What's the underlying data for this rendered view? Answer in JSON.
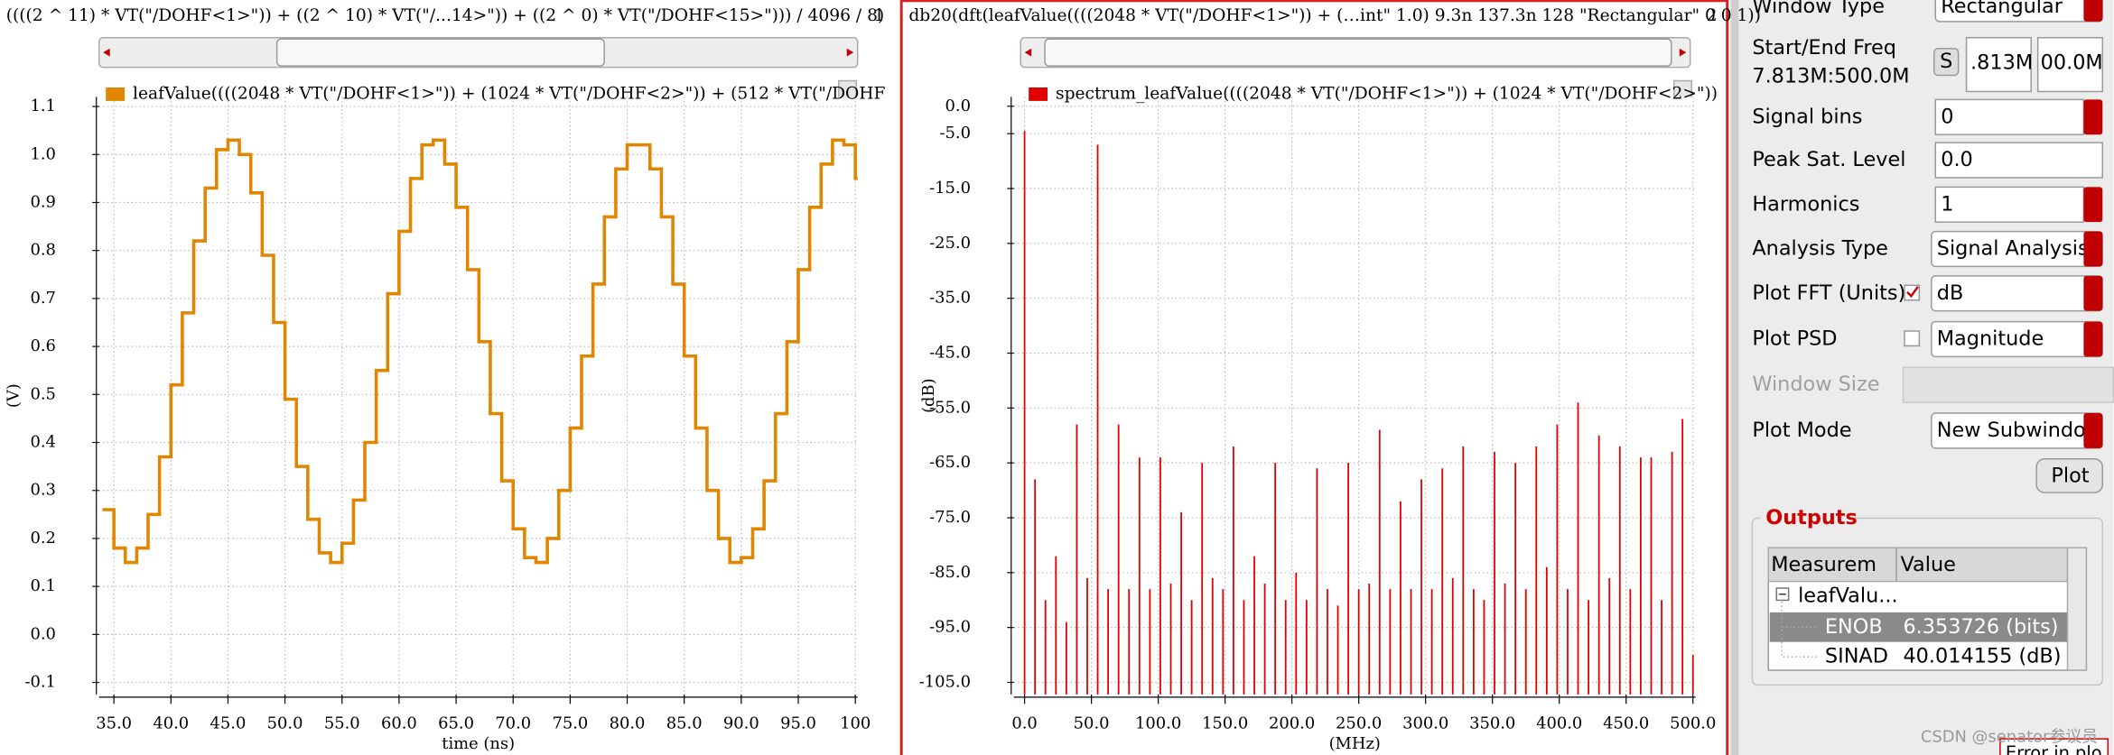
{
  "chart_data": [
    {
      "type": "line",
      "step": true,
      "title": "((((2 ^ 11) * VT(\"/DOHF<1>\")) + ((2 ^ 10) * VT(\"/...14>\")) + ((2 ^ 0) * VT(\"/DOHF<15>\"))) / 4096 / 8)",
      "subwindow": 1,
      "xlabel": "time (ns)",
      "ylabel": "(V)",
      "x": [
        34,
        35,
        36,
        37,
        38,
        39,
        40,
        41,
        42,
        43,
        44,
        45,
        46,
        47,
        48,
        49,
        50,
        51,
        52,
        53,
        54,
        55,
        56,
        57,
        58,
        59,
        60,
        61,
        62,
        63,
        64,
        65,
        66,
        67,
        68,
        69,
        70,
        71,
        72,
        73,
        74,
        75,
        76,
        77,
        78,
        79,
        80,
        81,
        82,
        83,
        84,
        85,
        86,
        87,
        88,
        89,
        90,
        91,
        92,
        93,
        94,
        95,
        96,
        97,
        98,
        99,
        100
      ],
      "series": [
        {
          "name": "leafValue((((2048 * VT(\"/DOHF<1>\")) + (1024 * VT(\"/DOHF<2>\")) + (512 * VT(\"/DOHF",
          "color": "#e08600",
          "values": [
            0.26,
            0.18,
            0.15,
            0.18,
            0.25,
            0.37,
            0.52,
            0.67,
            0.82,
            0.93,
            1.01,
            1.03,
            1.0,
            0.92,
            0.79,
            0.65,
            0.49,
            0.35,
            0.24,
            0.17,
            0.15,
            0.19,
            0.28,
            0.4,
            0.55,
            0.71,
            0.84,
            0.95,
            1.02,
            1.03,
            0.98,
            0.89,
            0.76,
            0.61,
            0.46,
            0.32,
            0.22,
            0.16,
            0.15,
            0.2,
            0.3,
            0.43,
            0.58,
            0.73,
            0.87,
            0.97,
            1.02,
            1.02,
            0.97,
            0.87,
            0.73,
            0.58,
            0.43,
            0.3,
            0.2,
            0.15,
            0.16,
            0.22,
            0.32,
            0.46,
            0.61,
            0.76,
            0.89,
            0.98,
            1.03,
            1.02,
            0.95
          ]
        }
      ],
      "xlim": [
        33.7,
        100.2
      ],
      "ylim": [
        -0.125,
        1.12
      ],
      "xticks": [
        {
          "value": 35,
          "label": "35.0"
        },
        {
          "value": 40,
          "label": "40.0"
        },
        {
          "value": 45,
          "label": "45.0"
        },
        {
          "value": 50,
          "label": "50.0"
        },
        {
          "value": 55,
          "label": "55.0"
        },
        {
          "value": 60,
          "label": "60.0"
        },
        {
          "value": 65,
          "label": "65.0"
        },
        {
          "value": 70,
          "label": "70.0"
        },
        {
          "value": 75,
          "label": "75.0"
        },
        {
          "value": 80,
          "label": "80.0"
        },
        {
          "value": 85,
          "label": "85.0"
        },
        {
          "value": 90,
          "label": "90.0"
        },
        {
          "value": 95,
          "label": "95.0"
        },
        100
      ],
      "yticks": [
        -0.1,
        {
          "value": 0,
          "label": "0.0"
        },
        0.1,
        0.2,
        0.3,
        0.4,
        0.5,
        0.6,
        0.7,
        0.8,
        0.9,
        {
          "value": 1,
          "label": "1.0"
        },
        1.1
      ],
      "grid": true
    },
    {
      "type": "bar",
      "title": "db20(dft(leafValue((((2048 * VT(\"/DOHF<1>\")) + (…int\" 1.0)  9.3n 137.3n 128 \"Rectangular\" 0 0 1))",
      "subwindow": 2,
      "xlabel": "(MHz)",
      "ylabel": "(dB)",
      "x": [
        0,
        7.813,
        15.625,
        23.438,
        31.25,
        39.063,
        46.875,
        54.688,
        62.5,
        70.313,
        78.125,
        85.938,
        93.75,
        101.563,
        109.375,
        117.188,
        125,
        132.813,
        140.625,
        148.438,
        156.25,
        164.063,
        171.875,
        179.688,
        187.5,
        195.313,
        203.125,
        210.938,
        218.75,
        226.563,
        234.375,
        242.188,
        250,
        257.813,
        265.625,
        273.438,
        281.25,
        289.063,
        296.875,
        304.688,
        312.5,
        320.313,
        328.125,
        335.938,
        343.75,
        351.563,
        359.375,
        367.188,
        375,
        382.813,
        390.625,
        398.438,
        406.25,
        414.063,
        421.875,
        429.688,
        437.5,
        445.313,
        453.125,
        460.938,
        468.75,
        476.563,
        484.375,
        492.188,
        500
      ],
      "series": [
        {
          "name": "spectrum_leafValue((((2048 * VT(\"/DOHF<1>\")) + (1024 * VT(\"/DOHF<2>\"))",
          "color": "#e00000",
          "values": [
            -4.5,
            -68,
            -90,
            -82,
            -94,
            -58,
            -86,
            -7,
            -88,
            -58,
            -88,
            -64,
            -88,
            -64,
            -87,
            -74,
            -90,
            -65,
            -86,
            -88,
            -62,
            -90,
            -82,
            -87,
            -65,
            -90,
            -85,
            -90,
            -66,
            -88,
            -91,
            -65,
            -88,
            -87,
            -59,
            -88,
            -72,
            -88,
            -68,
            -88,
            -66,
            -86,
            -62,
            -88,
            -90,
            -63,
            -87,
            -65,
            -88,
            -62,
            -84,
            -58,
            -88,
            -54,
            -90,
            -60,
            -86,
            -62,
            -88,
            -64,
            -64,
            -90,
            -63,
            -57,
            -100
          ]
        }
      ],
      "xlim": [
        -8,
        502
      ],
      "ylim": [
        -107.2,
        1.7
      ],
      "xticks": [
        {
          "value": 0,
          "label": "0.0"
        },
        {
          "value": 50,
          "label": "50.0"
        },
        {
          "value": 100,
          "label": "100.0"
        },
        {
          "value": 150,
          "label": "150.0"
        },
        {
          "value": 200,
          "label": "200.0"
        },
        {
          "value": 250,
          "label": "250.0"
        },
        {
          "value": 300,
          "label": "300.0"
        },
        {
          "value": 350,
          "label": "350.0"
        },
        {
          "value": 400,
          "label": "400.0"
        },
        {
          "value": 450,
          "label": "450.0"
        },
        {
          "value": 500,
          "label": "500.0"
        }
      ],
      "yticks": [
        {
          "value": 0,
          "label": "0.0"
        },
        {
          "value": -5,
          "label": "-5.0"
        },
        {
          "value": -15,
          "label": "-15.0"
        },
        {
          "value": -25,
          "label": "-25.0"
        },
        {
          "value": -35,
          "label": "-35.0"
        },
        {
          "value": -45,
          "label": "-45.0"
        },
        {
          "value": -55,
          "label": "-55.0"
        },
        {
          "value": -65,
          "label": "-65.0"
        },
        {
          "value": -75,
          "label": "-75.0"
        },
        {
          "value": -85,
          "label": "-85.0"
        },
        {
          "value": -95,
          "label": "-95.0"
        },
        {
          "value": -105,
          "label": "-105.0"
        }
      ],
      "grid": true
    }
  ],
  "panel": {
    "window_type": {
      "label": "Window Type",
      "value": "Rectangular"
    },
    "freq": {
      "label": "Start/End Freq",
      "range": "7.813M:500.0M",
      "button": "S",
      "start": ".813M",
      "end": "00.0M"
    },
    "signal_bins": {
      "label": "Signal bins",
      "value": "0"
    },
    "peak_sat": {
      "label": "Peak Sat. Level",
      "value": "0.0"
    },
    "harmonics": {
      "label": "Harmonics",
      "value": "1"
    },
    "analysis_type": {
      "label": "Analysis Type",
      "value": "Signal Analysis"
    },
    "plot_fft": {
      "label": "Plot FFT (Units)",
      "checked": true,
      "value": "dB"
    },
    "plot_psd": {
      "label": "Plot PSD",
      "checked": false,
      "value": "Magnitude"
    },
    "window_size": {
      "label": "Window Size"
    },
    "plot_mode": {
      "label": "Plot Mode",
      "value": "New Subwindow"
    },
    "plot_button": "Plot",
    "outputs": {
      "title": "Outputs",
      "headers": [
        "Measurem",
        "Value"
      ],
      "parent": "leafValu...",
      "rows": [
        [
          "ENOB",
          "6.353726 (bits)"
        ],
        [
          "SINAD",
          "40.014155 (dB)"
        ]
      ]
    },
    "error": "Error in plo",
    "watermark": "CSDN @senator参议员"
  }
}
